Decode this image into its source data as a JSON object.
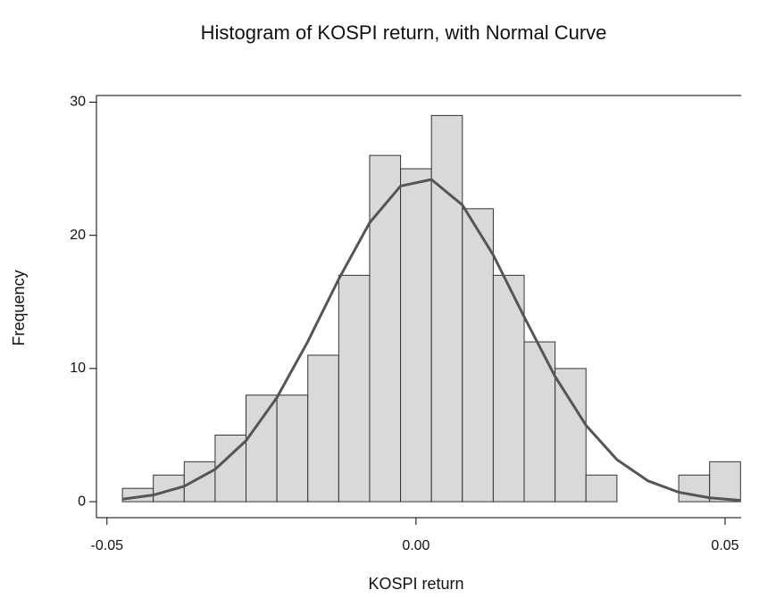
{
  "chart_data": {
    "type": "histogram",
    "title": "Histogram of KOSPI return, with Normal Curve",
    "x_label": "KOSPI return",
    "y_label": "Frequency",
    "bins": [
      -0.0475,
      -0.0425,
      -0.0375,
      -0.0325,
      -0.0275,
      -0.0225,
      -0.0175,
      -0.0125,
      -0.0075,
      -0.0025,
      0.0025,
      0.0075,
      0.0125,
      0.0175,
      0.0225,
      0.0275,
      0.0325,
      0.0375,
      0.0425,
      0.0475,
      0.0525
    ],
    "values": [
      1,
      2,
      3,
      5,
      8,
      8,
      11,
      17,
      26,
      25,
      29,
      22,
      17,
      12,
      10,
      2,
      0,
      0,
      2,
      3
    ],
    "color": "#d9d9d9",
    "curve": {
      "color": "#555555",
      "x": [
        -0.0475,
        -0.0425,
        -0.0375,
        -0.0325,
        -0.0275,
        -0.0225,
        -0.0175,
        -0.0125,
        -0.0075,
        -0.0025,
        0.0025,
        0.0075,
        0.0125,
        0.0175,
        0.0225,
        0.0275,
        0.0325,
        0.0375,
        0.0425,
        0.0475,
        0.0525
      ],
      "values": [
        0.19,
        0.5,
        1.16,
        2.43,
        4.58,
        7.82,
        12.03,
        16.72,
        20.95,
        23.7,
        24.19,
        22.28,
        18.52,
        13.88,
        9.4,
        5.74,
        3.16,
        1.57,
        0.71,
        0.29,
        0.1
      ]
    },
    "xlim": [
      -0.0517,
      0.0526
    ],
    "ylim": [
      -1.2,
      30.5
    ],
    "xticks": [
      {
        "value": -0.05,
        "label": "-0.05"
      },
      {
        "value": 0,
        "label": "0.00"
      },
      {
        "value": 0.05,
        "label": "0.05"
      }
    ],
    "yticks": [
      0,
      10,
      20,
      30
    ],
    "grid": false
  }
}
